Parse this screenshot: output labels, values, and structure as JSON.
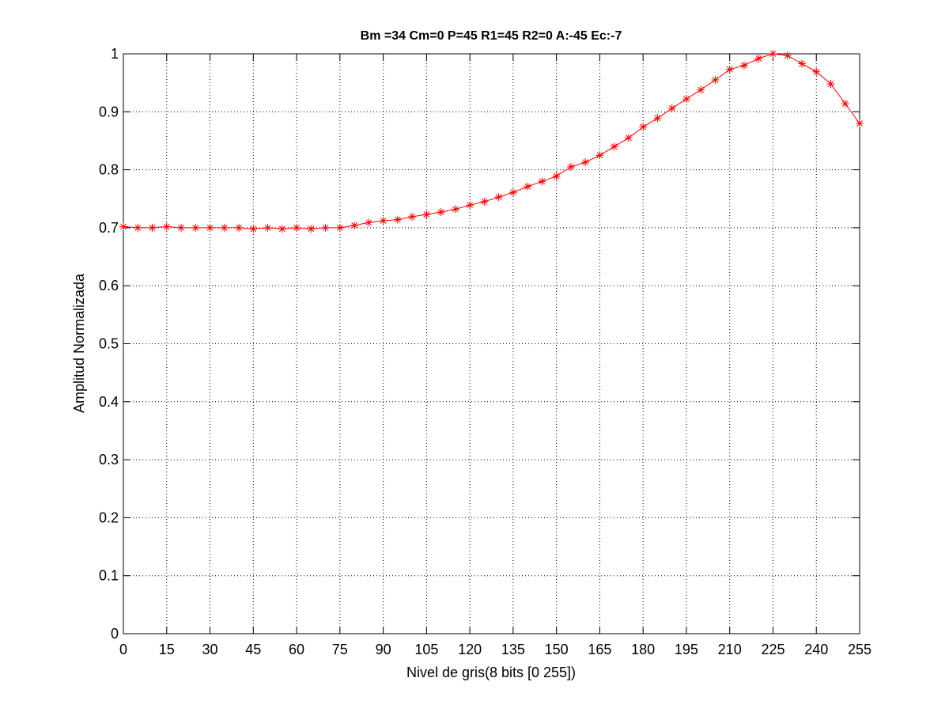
{
  "chart_data": {
    "type": "line",
    "title": "Bm =34  Cm=0  P=45  R1=45  R2=0  A:-45  Ec:-7",
    "xlabel": "Nivel de gris(8 bits [0 255])",
    "ylabel": "Amplitud Normalizada",
    "xlim": [
      0,
      255
    ],
    "ylim": [
      0,
      1
    ],
    "grid": true,
    "legend": "none",
    "x_ticks": [
      "0",
      "15",
      "30",
      "45",
      "60",
      "75",
      "90",
      "105",
      "120",
      "135",
      "150",
      "165",
      "180",
      "195",
      "210",
      "225",
      "240",
      "255"
    ],
    "y_ticks": [
      "0",
      "0.1",
      "0.2",
      "0.3",
      "0.4",
      "0.5",
      "0.6",
      "0.7",
      "0.8",
      "0.9",
      "1"
    ],
    "series": [
      {
        "color": "#ff0000",
        "marker": "asterisk",
        "x": [
          0,
          5,
          10,
          15,
          20,
          25,
          30,
          35,
          40,
          45,
          50,
          55,
          60,
          65,
          70,
          75,
          80,
          85,
          90,
          95,
          100,
          105,
          110,
          115,
          120,
          125,
          130,
          135,
          140,
          145,
          150,
          155,
          160,
          165,
          170,
          175,
          180,
          185,
          190,
          195,
          200,
          205,
          210,
          215,
          220,
          225,
          230,
          235,
          240,
          245,
          250,
          255
        ],
        "values": [
          0.702,
          0.7,
          0.7,
          0.702,
          0.7,
          0.7,
          0.7,
          0.7,
          0.7,
          0.698,
          0.7,
          0.698,
          0.7,
          0.698,
          0.7,
          0.7,
          0.704,
          0.709,
          0.712,
          0.714,
          0.719,
          0.723,
          0.727,
          0.732,
          0.739,
          0.745,
          0.753,
          0.761,
          0.771,
          0.78,
          0.789,
          0.805,
          0.813,
          0.825,
          0.84,
          0.855,
          0.874,
          0.889,
          0.906,
          0.922,
          0.938,
          0.955,
          0.973,
          0.98,
          0.992,
          1.0,
          0.997,
          0.983,
          0.969,
          0.948,
          0.914,
          0.88
        ]
      }
    ]
  }
}
